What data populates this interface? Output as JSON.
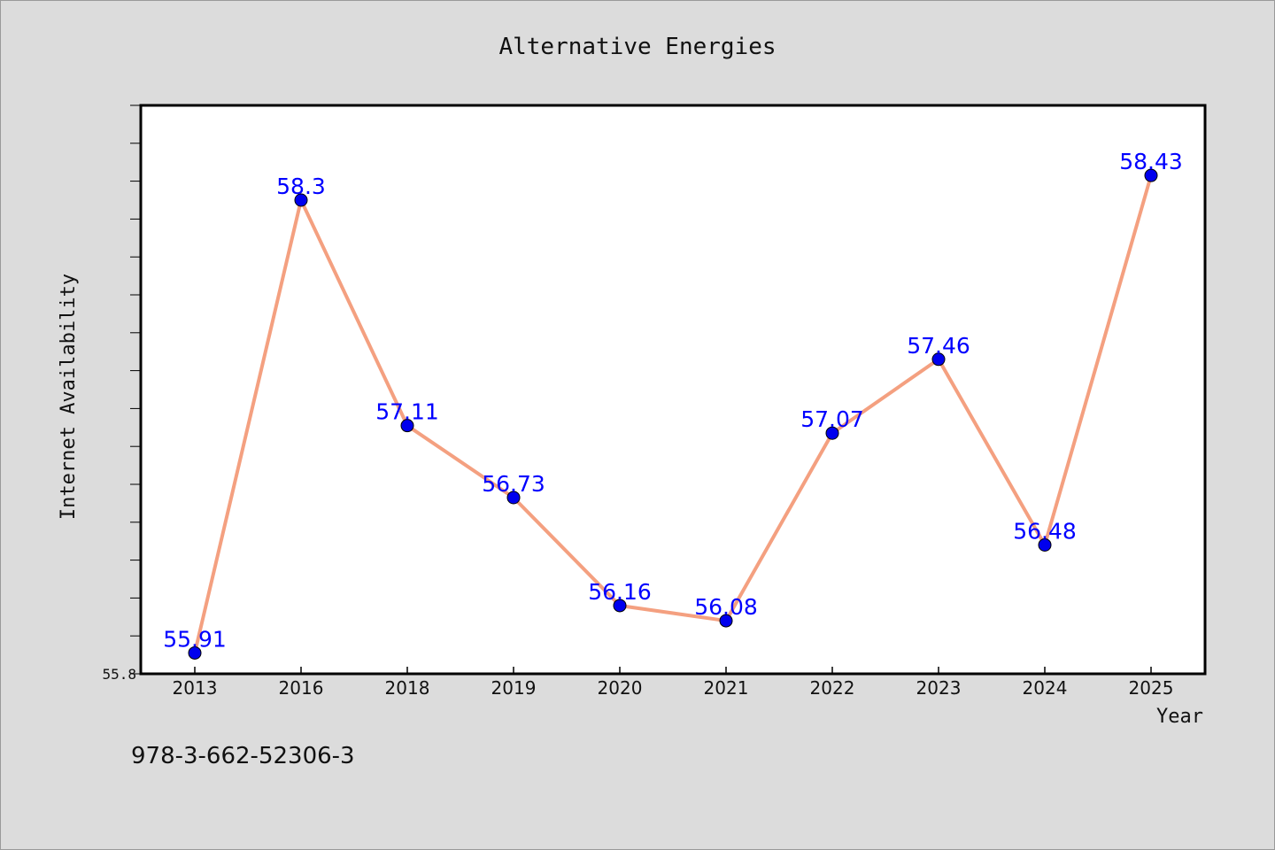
{
  "chart_data": {
    "type": "line",
    "title": "Alternative Energies",
    "xlabel": "Year",
    "ylabel": "Internet Availability",
    "categories": [
      "2013",
      "2016",
      "2018",
      "2019",
      "2020",
      "2021",
      "2022",
      "2023",
      "2024",
      "2025"
    ],
    "series": [
      {
        "values": [
          55.91,
          58.3,
          57.11,
          56.73,
          56.16,
          56.08,
          57.07,
          57.46,
          56.48,
          58.43
        ],
        "labels": [
          "55.91",
          "58.3",
          "57.11",
          "56.73",
          "56.16",
          "56.08",
          "57.07",
          "57.46",
          "56.48",
          "58.43"
        ],
        "line_color": "#f4a080",
        "marker_color": "#0000ee",
        "label_color": "#0000ff"
      }
    ],
    "ylim": [
      55.8,
      58.8
    ],
    "yticks_labeled": [
      "55.8"
    ],
    "grid": false,
    "legend": "none"
  },
  "footer_text": "978-3-662-52306-3",
  "colors": {
    "background": "#dcdcdc",
    "plot_background": "#ffffff",
    "axis": "#000000"
  }
}
